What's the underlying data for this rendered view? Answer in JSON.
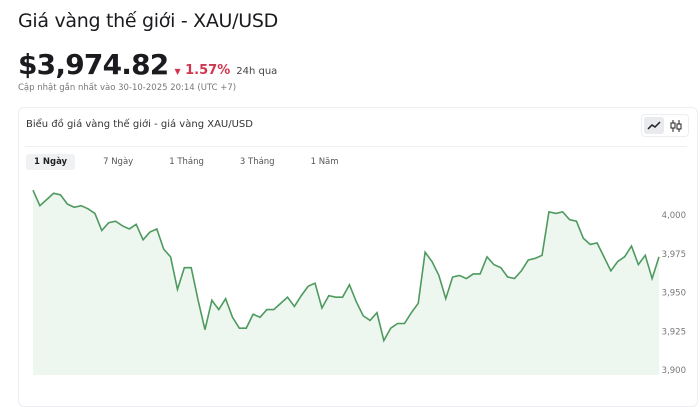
{
  "header": {
    "title": "Giá vàng thế giới - XAU/USD",
    "price": "$3,974.82",
    "change": "1.57%",
    "change_direction": "down",
    "period": "24h qua",
    "updated": "Cập nhật gần nhất vào 30-10-2025 20:14 (UTC +7)"
  },
  "card": {
    "title": "Biểu đồ giá vàng thế giới - giá vàng XAU/USD",
    "chart_types": [
      {
        "icon": "line-chart-icon",
        "active": true
      },
      {
        "icon": "candlestick-icon",
        "active": false
      }
    ],
    "tabs": [
      {
        "label": "1 Ngày",
        "active": true
      },
      {
        "label": "7 Ngày"
      },
      {
        "label": "1 Tháng"
      },
      {
        "label": "3 Tháng"
      },
      {
        "label": "1 Năm"
      }
    ]
  },
  "colors": {
    "line": "#4e9a5e",
    "fill": "#eef6f0",
    "down": "#d0364f"
  },
  "chart_data": {
    "type": "area",
    "ylim": [
      3900,
      4016
    ],
    "yticks": [
      "4,000",
      "3,975",
      "3,950",
      "3,925",
      "3,900"
    ],
    "ytick_values": [
      4000,
      3975,
      3950,
      3925,
      3900
    ],
    "grid": false,
    "values": [
      4016,
      4006,
      4010,
      4014,
      4013,
      4007,
      4005,
      4006,
      4004,
      4001,
      3990,
      3995,
      3996,
      3993,
      3991,
      3994,
      3984,
      3989,
      3991,
      3978,
      3973,
      3952,
      3966,
      3966,
      3945,
      3926,
      3945,
      3939,
      3946,
      3934,
      3927,
      3927,
      3936,
      3934,
      3939,
      3939,
      3943,
      3947,
      3941,
      3948,
      3954,
      3956,
      3940,
      3948,
      3947,
      3947,
      3955,
      3944,
      3935,
      3932,
      3937,
      3919,
      3927,
      3930,
      3930,
      3937,
      3943,
      3976,
      3970,
      3961,
      3946,
      3960,
      3961,
      3959,
      3962,
      3962,
      3973,
      3968,
      3966,
      3960,
      3959,
      3964,
      3971,
      3972,
      3974,
      4002,
      4001,
      4002,
      3997,
      3996,
      3985,
      3981,
      3982,
      3973,
      3964,
      3970,
      3973,
      3980,
      3968,
      3974,
      3959,
      3973
    ]
  }
}
